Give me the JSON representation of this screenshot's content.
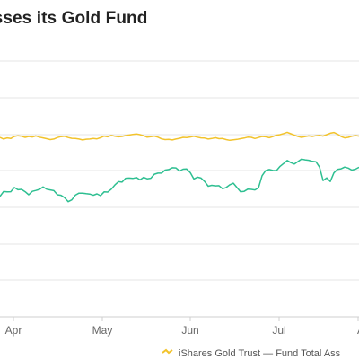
{
  "chart_data": {
    "type": "line",
    "title": "asses its Gold Fund",
    "x_ticks": [
      "Apr",
      "May",
      "Jun",
      "Jul"
    ],
    "legend": "iShares Gold Trust — Fund Total Ass",
    "legend_placement": "bottom",
    "grid": true,
    "y_tick_labels_visible": false,
    "series": [
      {
        "name": "iShares Gold Trust",
        "color": "#F2C32C",
        "values": [
          118.5,
          117.6,
          118.2,
          117.9,
          119.0,
          119.4,
          119.1,
          118.5,
          119.0,
          118.7,
          119.3,
          118.6,
          118.2,
          117.8,
          117.3,
          117.6,
          118.4,
          118.9,
          119.1,
          118.4,
          118.0,
          117.9,
          117.6,
          117.1,
          117.5,
          117.6,
          117.9,
          117.7,
          118.3,
          119.2,
          118.8,
          119.6,
          119.1,
          118.8,
          119.0,
          119.5,
          119.8,
          120.1,
          120.4,
          120.0,
          119.4,
          118.6,
          118.9,
          119.2,
          118.6,
          117.7,
          117.3,
          117.4,
          117.1,
          117.6,
          118.0,
          118.5,
          118.4,
          118.7,
          119.1,
          118.6,
          118.2,
          118.1,
          117.6,
          117.9,
          118.3,
          117.8,
          117.9,
          117.3,
          116.9,
          117.2,
          117.4,
          117.8,
          118.1,
          118.6,
          118.5,
          117.9,
          118.4,
          119.0,
          118.8,
          118.3,
          118.9,
          119.7,
          120.0,
          120.6,
          121.3,
          120.5,
          119.7,
          119.0,
          118.5,
          118.9,
          119.3,
          119.0,
          119.4,
          119.6,
          119.2,
          120.0,
          120.8,
          121.2,
          120.3,
          119.0,
          118.2,
          118.5,
          119.1,
          119.5,
          119.2
        ]
      },
      {
        "name": "Fund Total Assets",
        "color": "#2EBF91",
        "values": [
          86.0,
          88.7,
          88.5,
          88.6,
          90.9,
          89.7,
          89.9,
          88.6,
          86.9,
          88.8,
          89.3,
          89.9,
          91.2,
          90.0,
          89.6,
          89.2,
          86.9,
          86.6,
          85.3,
          83.1,
          84.1,
          86.7,
          87.8,
          87.8,
          87.5,
          87.3,
          86.6,
          87.4,
          86.4,
          88.5,
          88.4,
          90.0,
          92.3,
          94.1,
          93.9,
          96.0,
          96.1,
          95.9,
          96.4,
          95.1,
          96.5,
          95.7,
          96.0,
          98.2,
          98.8,
          98.8,
          100.5,
          100.8,
          101.8,
          101.7,
          100.0,
          101.0,
          101.1,
          99.1,
          95.6,
          96.6,
          96.1,
          94.2,
          91.6,
          92.1,
          91.8,
          91.9,
          90.2,
          90.9,
          92.4,
          93.3,
          90.9,
          88.6,
          88.8,
          90.0,
          89.9,
          89.6,
          90.7,
          97.4,
          100.2,
          100.8,
          100.3,
          100.2,
          102.5,
          104.1,
          105.8,
          104.6,
          103.8,
          105.2,
          106.5,
          106.1,
          105.9,
          105.3,
          105.1,
          102.1,
          94.7,
          96.2,
          94.2,
          98.9,
          100.9,
          101.2,
          102.1,
          101.6,
          100.5,
          101.0,
          102.0
        ]
      }
    ]
  }
}
